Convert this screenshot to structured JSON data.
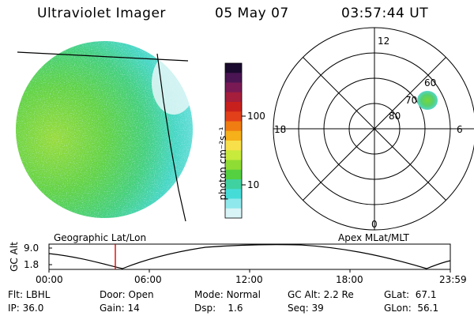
{
  "header": {
    "instrument": "Ultraviolet Imager",
    "date": "05 May 07",
    "time": "03:57:44 UT"
  },
  "panels": {
    "left_caption": "Geographic Lat/Lon",
    "right_caption": "Apex MLat/MLT"
  },
  "colorbar": {
    "label": "photon cm⁻²s⁻¹",
    "ticks": [
      "100",
      "10"
    ],
    "colors": [
      "#1a0a2e",
      "#4a1552",
      "#7a1a55",
      "#a51e3c",
      "#c8211d",
      "#e2401a",
      "#f07d12",
      "#f5b01a",
      "#f7e04a",
      "#c8ea3c",
      "#8fdc34",
      "#55d040",
      "#3fd2a0",
      "#45dcd8",
      "#8fe8ec",
      "#d8f4f6"
    ]
  },
  "polar": {
    "mlt_labels": [
      "12",
      "18",
      "6",
      "0"
    ],
    "lat_labels": [
      "60",
      "70",
      "80"
    ]
  },
  "altitude_plot": {
    "ylabel": "GC Alt",
    "yticks": [
      "9.0",
      "1.8"
    ],
    "xticks": [
      "00:00",
      "06:00",
      "12:00",
      "18:00",
      "23:59"
    ],
    "marker_time": "03:57"
  },
  "info": {
    "flt": {
      "label": "Flt:",
      "value": "LBHL"
    },
    "ip": {
      "label": "IP:",
      "value": "36.0"
    },
    "door": {
      "label": "Door:",
      "value": "Open"
    },
    "gain": {
      "label": "Gain:",
      "value": "14"
    },
    "mode": {
      "label": "Mode:",
      "value": "Normal"
    },
    "dsp": {
      "label": "Dsp:",
      "value": "1.6"
    },
    "gcalt": {
      "label": "GC Alt:",
      "value": "2.2 Re"
    },
    "seq": {
      "label": "Seq:",
      "value": "39"
    },
    "glat": {
      "label": "GLat:",
      "value": "67.1"
    },
    "glon": {
      "label": "GLon:",
      "value": "56.1"
    }
  }
}
